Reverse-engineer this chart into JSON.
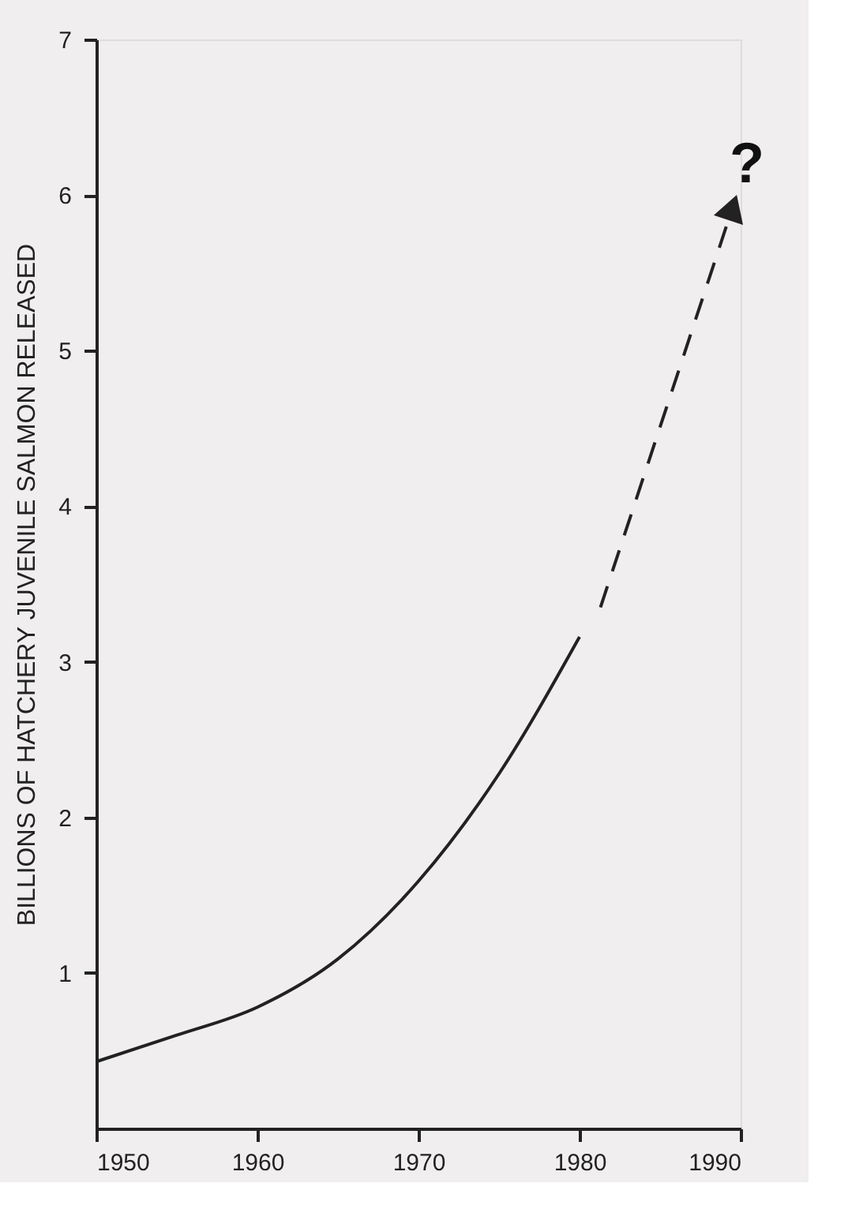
{
  "chart_data": {
    "type": "line",
    "ylabel": "BILLIONS OF HATCHERY JUVENILE SALMON RELEASED",
    "series": [
      {
        "color": "#222222",
        "line_style": "solid",
        "x": [
          1950,
          1955,
          1960,
          1965,
          1970,
          1975,
          1980
        ],
        "values": [
          0.43,
          0.6,
          0.78,
          1.09,
          1.59,
          2.28,
          3.16
        ]
      },
      {
        "color": "#222222",
        "line_style": "dashed",
        "x": [
          1981.3,
          1989.5
        ],
        "values": [
          3.35,
          5.92
        ]
      }
    ],
    "annotations": [
      "?"
    ],
    "xlim": [
      1950,
      1990
    ],
    "xticks": [
      1950,
      1960,
      1970,
      1980,
      1990
    ],
    "ylim": [
      0,
      7
    ],
    "yticks": [
      1,
      2,
      3,
      4,
      5,
      6,
      7
    ],
    "grid": false
  }
}
